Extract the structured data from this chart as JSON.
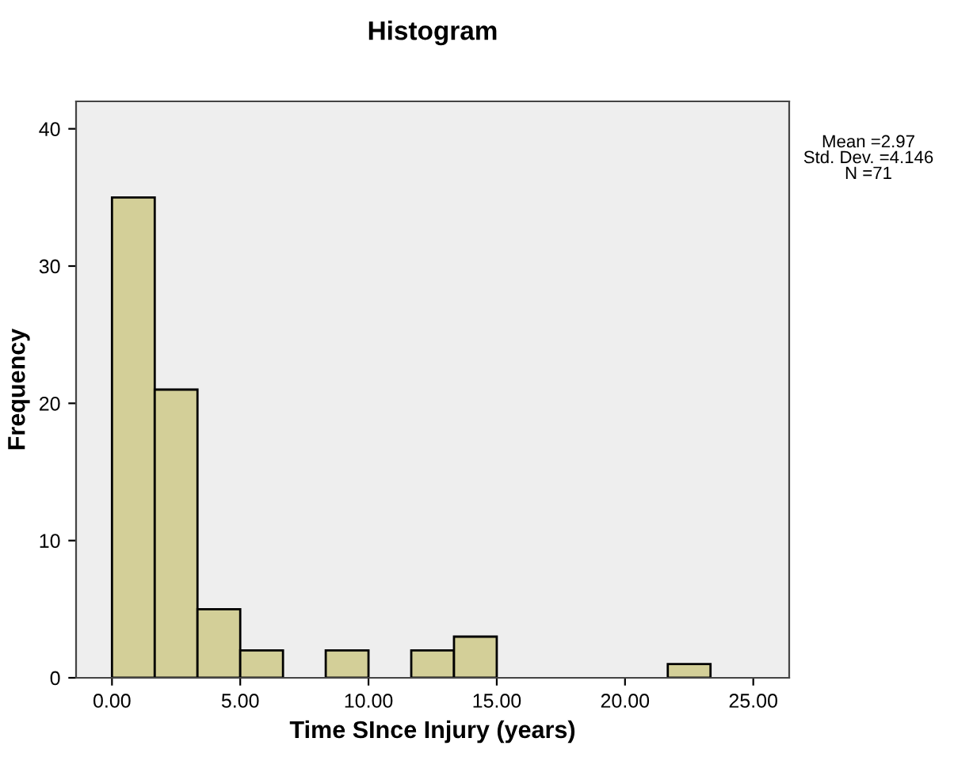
{
  "chart_data": {
    "type": "histogram",
    "title": "Histogram",
    "xlabel": "Time SInce Injury (years)",
    "ylabel": "Frequency",
    "bins": [
      0,
      1.667,
      3.333,
      5,
      6.667,
      8.333,
      10,
      11.667,
      13.333,
      15,
      16.667,
      18.333,
      20,
      21.667,
      23.333
    ],
    "values": [
      35,
      21,
      5,
      2,
      0,
      2,
      0,
      2,
      3,
      0,
      0,
      0,
      0,
      1
    ],
    "color": "#d3cf98",
    "xlim": [
      -1.4,
      26.4
    ],
    "xticks": [
      {
        "value": 0,
        "label": "0.00"
      },
      {
        "value": 5,
        "label": "5.00"
      },
      {
        "value": 10,
        "label": "10.00"
      },
      {
        "value": 15,
        "label": "15.00"
      },
      {
        "value": 20,
        "label": "20.00"
      },
      {
        "value": 25,
        "label": "25.00"
      }
    ],
    "ylim": [
      0,
      42
    ],
    "yticks": [
      0,
      10,
      20,
      30,
      40
    ],
    "grid": false,
    "annotations": [
      "Mean =2.97\nStd. Dev. =4.146\nN =71"
    ]
  }
}
